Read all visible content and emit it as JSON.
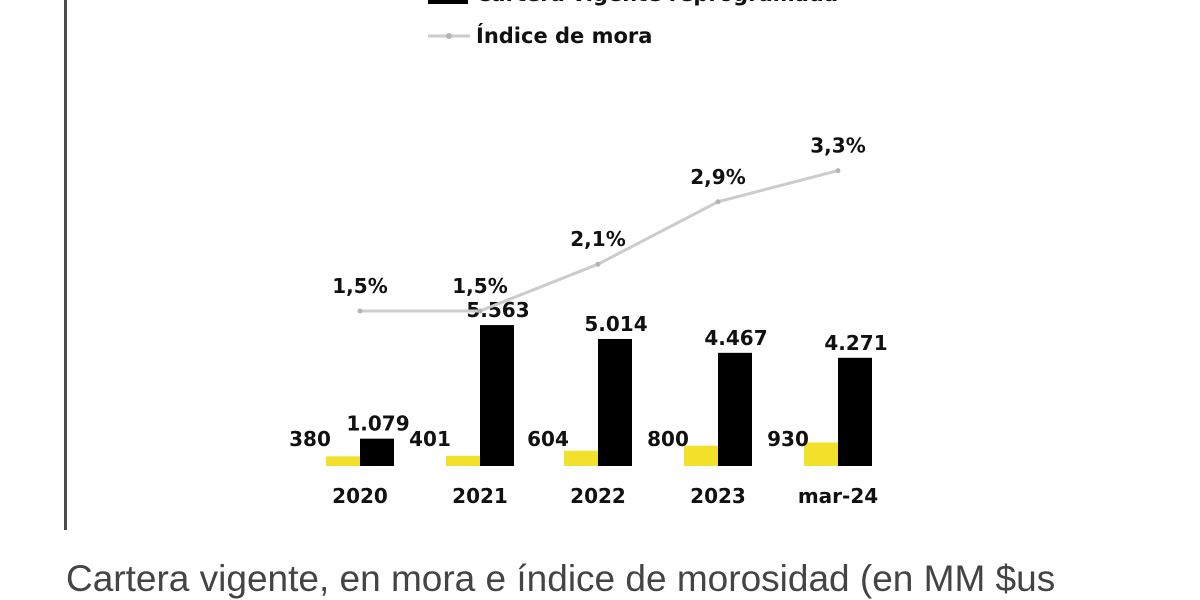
{
  "chart_data": {
    "type": "bar",
    "categories": [
      "2020",
      "2021",
      "2022",
      "2023",
      "mar-24"
    ],
    "series": [
      {
        "name": "",
        "kind": "bar",
        "color": "#f2e02a",
        "values": [
          380,
          401,
          604,
          800,
          930
        ]
      },
      {
        "name": "Cartera vigente reprogramada",
        "kind": "bar",
        "color": "#000000",
        "values": [
          1079,
          5563,
          5014,
          4467,
          4271
        ]
      },
      {
        "name": "Índice de mora",
        "kind": "line",
        "color": "#cccccc",
        "values": [
          1.5,
          1.5,
          2.1,
          2.9,
          3.3
        ]
      }
    ],
    "labels": {
      "yellow": [
        "380",
        "401",
        "604",
        "800",
        "930"
      ],
      "black": [
        "1.079",
        "5.563",
        "5.014",
        "4.467",
        "4.271"
      ],
      "line": [
        "1,5%",
        "1,5%",
        "2,1%",
        "2,9%",
        "3,3%"
      ]
    },
    "legend": [
      "Cartera vigente reprogramada",
      "Índice de mora"
    ],
    "legend_position": "top",
    "grid": false
  },
  "caption": "Cartera vigente, en mora e índice de morosidad (en MM $us"
}
